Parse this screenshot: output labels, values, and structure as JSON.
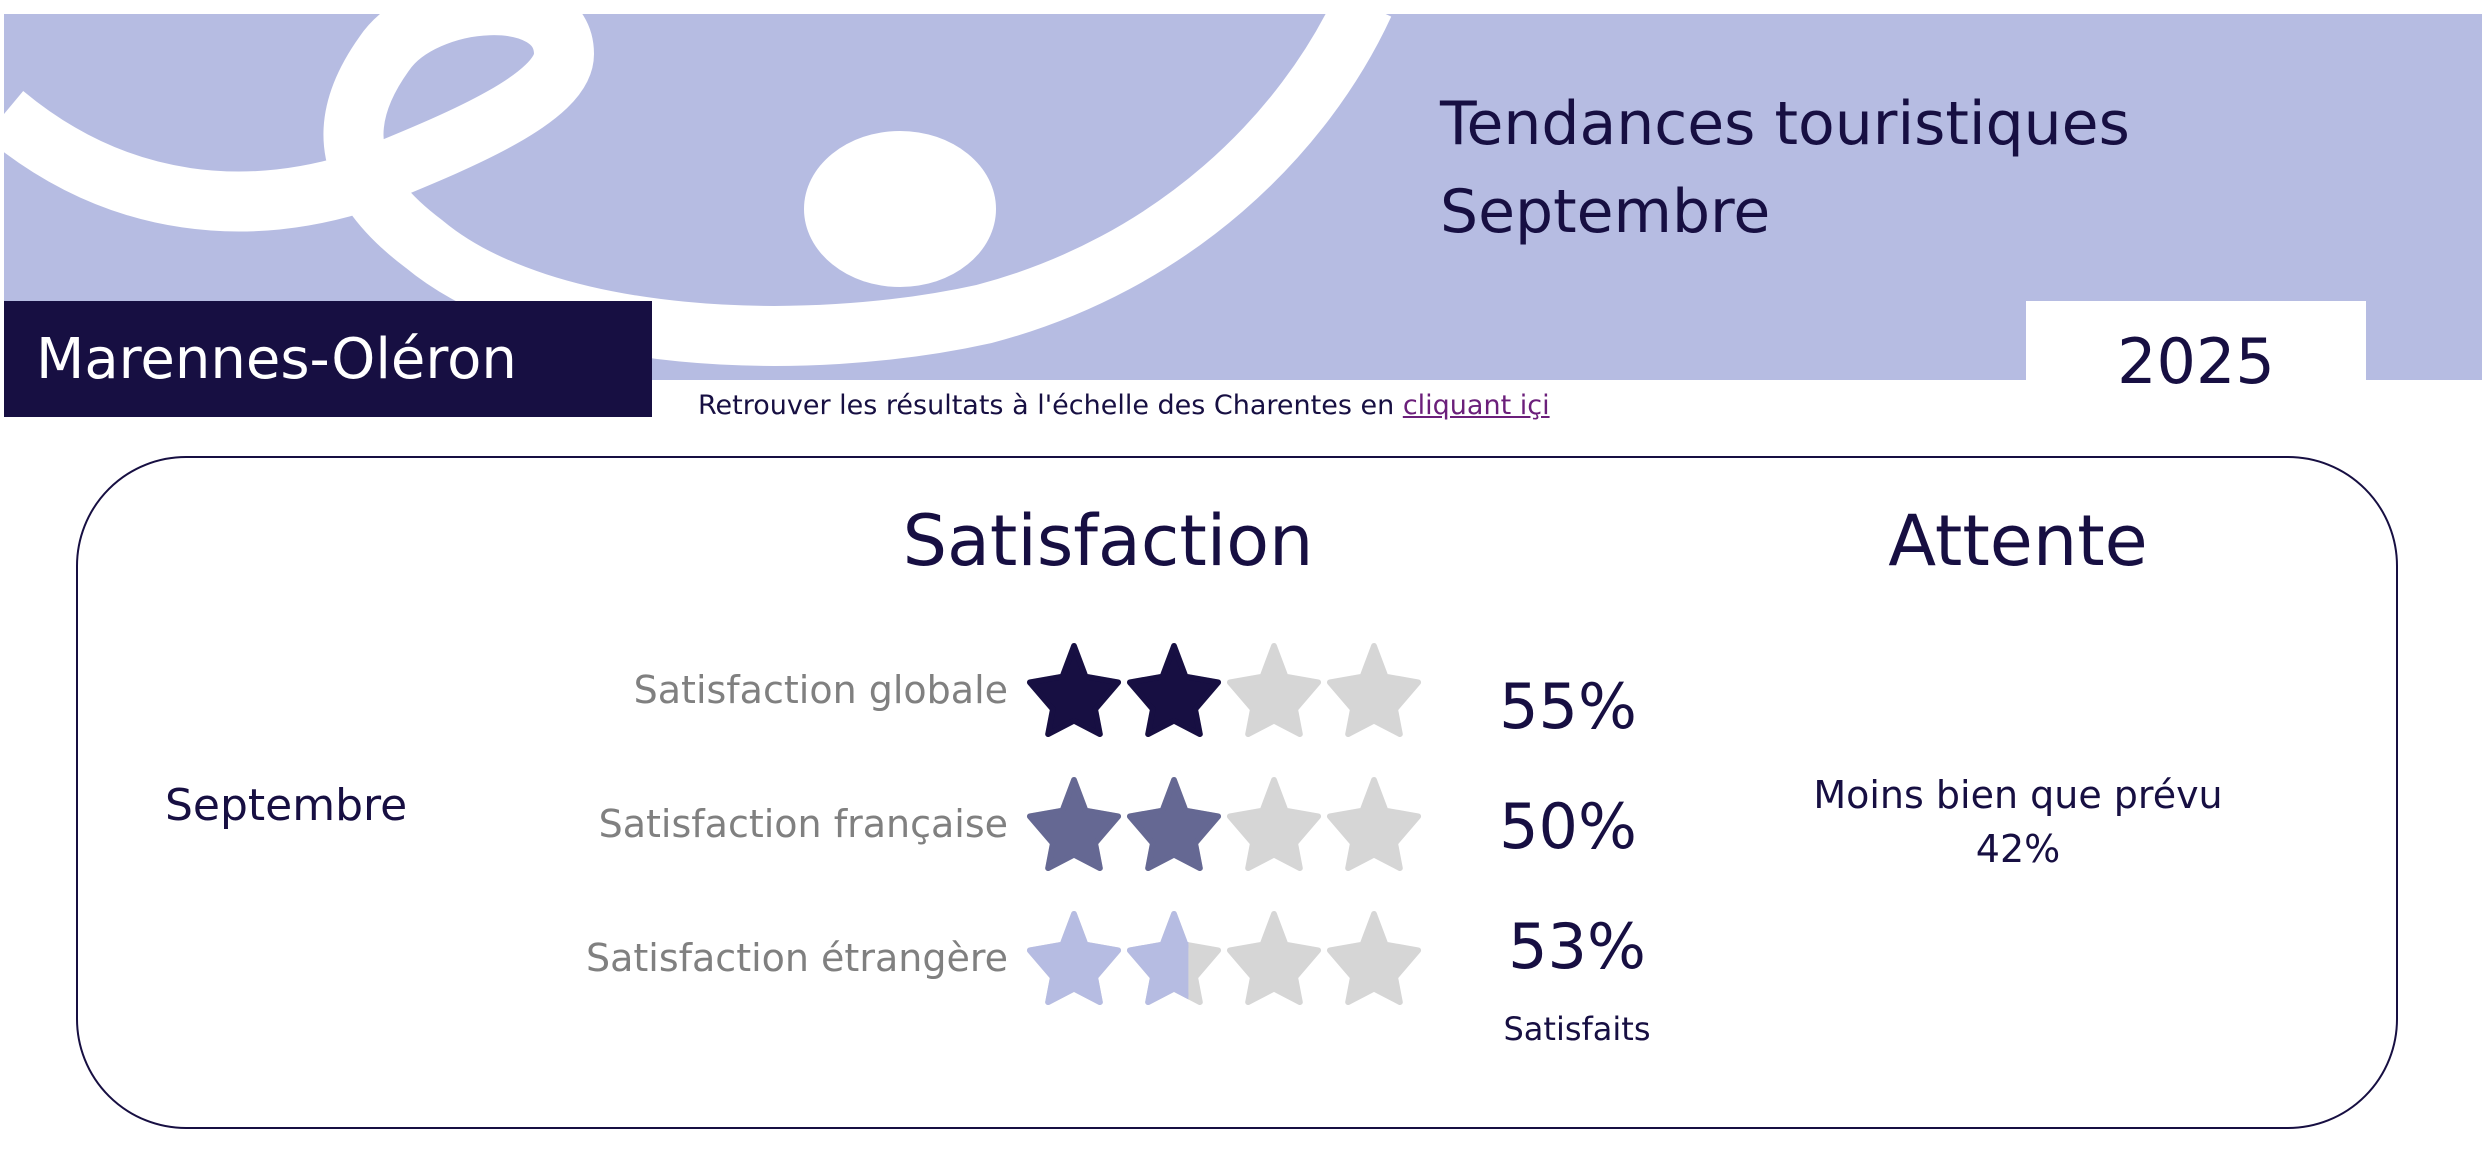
{
  "header": {
    "region": "Marennes-Oléron",
    "title_line1": "Tendances touristiques",
    "title_line2": "Septembre",
    "year": "2025",
    "link_prefix": "Retrouver les résultats à l'échelle des Charentes en ",
    "link_text": "cliquant içi"
  },
  "colors": {
    "dark": "#170f42",
    "mid": "#656893",
    "light": "#b6bce2",
    "empty": "#d6d6d6",
    "link": "#6b1f7a"
  },
  "card": {
    "satisfaction_heading": "Satisfaction",
    "attente_heading": "Attente",
    "month": "Septembre",
    "rows": [
      {
        "label": "Satisfaction globale",
        "percent": "55%",
        "stars_filled": 2.0,
        "max_stars": 4,
        "color": "#170f42"
      },
      {
        "label": "Satisfaction française",
        "percent": "50%",
        "stars_filled": 2.0,
        "max_stars": 4,
        "color": "#656893"
      },
      {
        "label": "Satisfaction étrangère",
        "percent": "53%",
        "stars_filled": 1.65,
        "max_stars": 4,
        "color": "#b6bce2"
      }
    ],
    "satisfaits_label": "Satisfaits",
    "attente_text": "Moins bien que prévu",
    "attente_percent": "42%"
  }
}
